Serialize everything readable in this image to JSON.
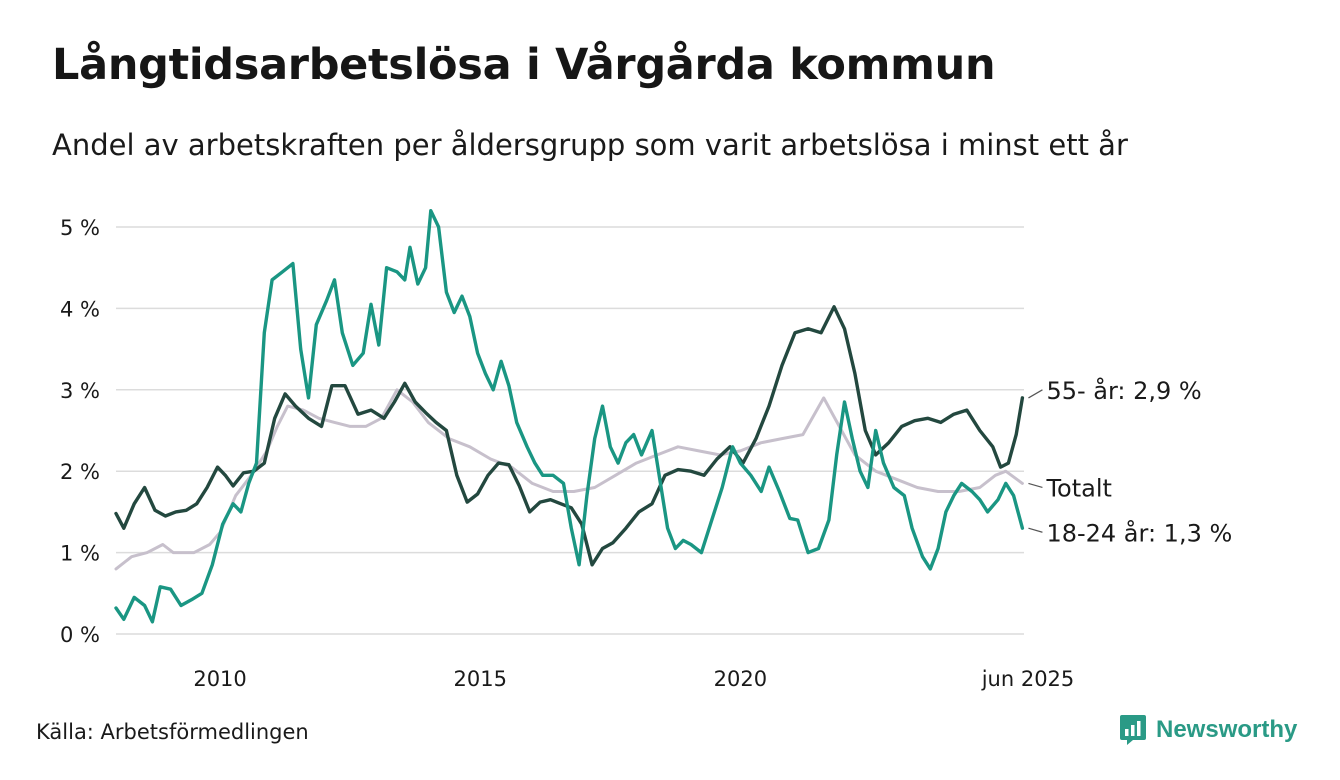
{
  "title": "Långtidsarbetslösa i Vårgårda kommun",
  "subtitle": "Andel av arbetskraften per åldersgrupp som varit arbetslösa i minst ett år",
  "source": "Källa: Arbetsförmedlingen",
  "brand": {
    "name": "Newsworthy",
    "icon": "newsworthy-logo-icon",
    "color": "#2a9a86"
  },
  "colors": {
    "total": "#c7c0cc",
    "age55": "#23483f",
    "age18_24": "#1a9683",
    "grid": "#dcdcdc"
  },
  "chart_data": {
    "type": "line",
    "x_unit": "year",
    "xlim": [
      2008.0,
      2025.45
    ],
    "ylim": [
      0,
      5.2
    ],
    "y_ticks": [
      0,
      1,
      2,
      3,
      4,
      5
    ],
    "y_tick_labels": [
      "0 %",
      "1 %",
      "2 %",
      "3 %",
      "4 %",
      "5 %"
    ],
    "x_ticks": [
      2010,
      2015,
      2020,
      2025.42
    ],
    "x_tick_labels": [
      "2010",
      "2015",
      "2020",
      "jun 2025"
    ],
    "grid": "horizontal",
    "series": [
      {
        "key": "total",
        "name": "Totalt",
        "end_label": "Totalt",
        "color": "#c7c0cc",
        "points": [
          [
            2008.0,
            0.8
          ],
          [
            2008.3,
            0.95
          ],
          [
            2008.6,
            1.0
          ],
          [
            2008.9,
            1.1
          ],
          [
            2009.1,
            1.0
          ],
          [
            2009.5,
            1.0
          ],
          [
            2009.8,
            1.1
          ],
          [
            2010.0,
            1.25
          ],
          [
            2010.3,
            1.7
          ],
          [
            2010.6,
            1.95
          ],
          [
            2010.9,
            2.25
          ],
          [
            2011.1,
            2.55
          ],
          [
            2011.3,
            2.8
          ],
          [
            2011.6,
            2.75
          ],
          [
            2011.9,
            2.65
          ],
          [
            2012.2,
            2.6
          ],
          [
            2012.5,
            2.55
          ],
          [
            2012.8,
            2.55
          ],
          [
            2013.1,
            2.65
          ],
          [
            2013.4,
            3.0
          ],
          [
            2013.7,
            2.85
          ],
          [
            2014.0,
            2.6
          ],
          [
            2014.4,
            2.4
          ],
          [
            2014.8,
            2.3
          ],
          [
            2015.2,
            2.15
          ],
          [
            2015.6,
            2.05
          ],
          [
            2016.0,
            1.85
          ],
          [
            2016.4,
            1.75
          ],
          [
            2016.8,
            1.75
          ],
          [
            2017.2,
            1.8
          ],
          [
            2017.6,
            1.95
          ],
          [
            2018.0,
            2.1
          ],
          [
            2018.4,
            2.2
          ],
          [
            2018.8,
            2.3
          ],
          [
            2019.2,
            2.25
          ],
          [
            2019.6,
            2.2
          ],
          [
            2020.0,
            2.25
          ],
          [
            2020.4,
            2.35
          ],
          [
            2020.8,
            2.4
          ],
          [
            2021.2,
            2.45
          ],
          [
            2021.6,
            2.9
          ],
          [
            2021.9,
            2.55
          ],
          [
            2022.2,
            2.2
          ],
          [
            2022.6,
            2.0
          ],
          [
            2023.0,
            1.9
          ],
          [
            2023.4,
            1.8
          ],
          [
            2023.8,
            1.75
          ],
          [
            2024.2,
            1.75
          ],
          [
            2024.6,
            1.8
          ],
          [
            2024.9,
            1.95
          ],
          [
            2025.1,
            2.0
          ],
          [
            2025.42,
            1.85
          ]
        ]
      },
      {
        "key": "age55",
        "name": "55- år",
        "end_label": "55- år: 2,9 %",
        "color": "#23483f",
        "points": [
          [
            2008.0,
            1.48
          ],
          [
            2008.15,
            1.3
          ],
          [
            2008.35,
            1.6
          ],
          [
            2008.55,
            1.8
          ],
          [
            2008.75,
            1.52
          ],
          [
            2008.95,
            1.45
          ],
          [
            2009.15,
            1.5
          ],
          [
            2009.35,
            1.52
          ],
          [
            2009.55,
            1.6
          ],
          [
            2009.75,
            1.8
          ],
          [
            2009.95,
            2.05
          ],
          [
            2010.1,
            1.95
          ],
          [
            2010.25,
            1.82
          ],
          [
            2010.45,
            1.98
          ],
          [
            2010.65,
            2.0
          ],
          [
            2010.85,
            2.1
          ],
          [
            2011.05,
            2.65
          ],
          [
            2011.25,
            2.95
          ],
          [
            2011.45,
            2.8
          ],
          [
            2011.7,
            2.65
          ],
          [
            2011.95,
            2.55
          ],
          [
            2012.15,
            3.05
          ],
          [
            2012.4,
            3.05
          ],
          [
            2012.65,
            2.7
          ],
          [
            2012.9,
            2.75
          ],
          [
            2013.15,
            2.65
          ],
          [
            2013.35,
            2.85
          ],
          [
            2013.55,
            3.08
          ],
          [
            2013.75,
            2.85
          ],
          [
            2013.95,
            2.72
          ],
          [
            2014.15,
            2.6
          ],
          [
            2014.35,
            2.5
          ],
          [
            2014.55,
            1.95
          ],
          [
            2014.75,
            1.62
          ],
          [
            2014.95,
            1.72
          ],
          [
            2015.15,
            1.95
          ],
          [
            2015.35,
            2.1
          ],
          [
            2015.55,
            2.08
          ],
          [
            2015.75,
            1.82
          ],
          [
            2015.95,
            1.5
          ],
          [
            2016.15,
            1.62
          ],
          [
            2016.35,
            1.65
          ],
          [
            2016.55,
            1.6
          ],
          [
            2016.75,
            1.55
          ],
          [
            2016.95,
            1.35
          ],
          [
            2017.15,
            0.85
          ],
          [
            2017.35,
            1.05
          ],
          [
            2017.55,
            1.12
          ],
          [
            2017.8,
            1.3
          ],
          [
            2018.05,
            1.5
          ],
          [
            2018.3,
            1.6
          ],
          [
            2018.55,
            1.95
          ],
          [
            2018.8,
            2.02
          ],
          [
            2019.05,
            2.0
          ],
          [
            2019.3,
            1.95
          ],
          [
            2019.55,
            2.15
          ],
          [
            2019.8,
            2.3
          ],
          [
            2020.05,
            2.1
          ],
          [
            2020.3,
            2.4
          ],
          [
            2020.55,
            2.8
          ],
          [
            2020.8,
            3.3
          ],
          [
            2021.05,
            3.7
          ],
          [
            2021.3,
            3.75
          ],
          [
            2021.55,
            3.7
          ],
          [
            2021.8,
            4.02
          ],
          [
            2022.0,
            3.75
          ],
          [
            2022.2,
            3.2
          ],
          [
            2022.4,
            2.5
          ],
          [
            2022.6,
            2.2
          ],
          [
            2022.85,
            2.35
          ],
          [
            2023.1,
            2.55
          ],
          [
            2023.35,
            2.62
          ],
          [
            2023.6,
            2.65
          ],
          [
            2023.85,
            2.6
          ],
          [
            2024.1,
            2.7
          ],
          [
            2024.35,
            2.75
          ],
          [
            2024.6,
            2.5
          ],
          [
            2024.85,
            2.3
          ],
          [
            2025.0,
            2.05
          ],
          [
            2025.15,
            2.1
          ],
          [
            2025.3,
            2.45
          ],
          [
            2025.42,
            2.9
          ]
        ]
      },
      {
        "key": "age18_24",
        "name": "18-24 år",
        "end_label": "18-24 år: 1,3 %",
        "color": "#1a9683",
        "points": [
          [
            2008.0,
            0.32
          ],
          [
            2008.15,
            0.18
          ],
          [
            2008.35,
            0.45
          ],
          [
            2008.55,
            0.35
          ],
          [
            2008.7,
            0.15
          ],
          [
            2008.85,
            0.58
          ],
          [
            2009.05,
            0.55
          ],
          [
            2009.25,
            0.35
          ],
          [
            2009.45,
            0.42
          ],
          [
            2009.65,
            0.5
          ],
          [
            2009.85,
            0.85
          ],
          [
            2010.05,
            1.35
          ],
          [
            2010.25,
            1.6
          ],
          [
            2010.4,
            1.5
          ],
          [
            2010.55,
            1.85
          ],
          [
            2010.7,
            2.1
          ],
          [
            2010.85,
            3.7
          ],
          [
            2011.0,
            4.35
          ],
          [
            2011.2,
            4.45
          ],
          [
            2011.4,
            4.55
          ],
          [
            2011.55,
            3.5
          ],
          [
            2011.7,
            2.9
          ],
          [
            2011.85,
            3.8
          ],
          [
            2012.05,
            4.1
          ],
          [
            2012.2,
            4.35
          ],
          [
            2012.35,
            3.7
          ],
          [
            2012.55,
            3.3
          ],
          [
            2012.75,
            3.45
          ],
          [
            2012.9,
            4.05
          ],
          [
            2013.05,
            3.55
          ],
          [
            2013.2,
            4.5
          ],
          [
            2013.4,
            4.45
          ],
          [
            2013.55,
            4.35
          ],
          [
            2013.65,
            4.75
          ],
          [
            2013.8,
            4.3
          ],
          [
            2013.95,
            4.5
          ],
          [
            2014.05,
            5.2
          ],
          [
            2014.2,
            5.0
          ],
          [
            2014.35,
            4.2
          ],
          [
            2014.5,
            3.95
          ],
          [
            2014.65,
            4.15
          ],
          [
            2014.8,
            3.9
          ],
          [
            2014.95,
            3.45
          ],
          [
            2015.1,
            3.2
          ],
          [
            2015.25,
            3.0
          ],
          [
            2015.4,
            3.35
          ],
          [
            2015.55,
            3.05
          ],
          [
            2015.7,
            2.6
          ],
          [
            2015.9,
            2.3
          ],
          [
            2016.05,
            2.1
          ],
          [
            2016.2,
            1.95
          ],
          [
            2016.4,
            1.95
          ],
          [
            2016.6,
            1.85
          ],
          [
            2016.75,
            1.3
          ],
          [
            2016.9,
            0.85
          ],
          [
            2017.05,
            1.7
          ],
          [
            2017.2,
            2.4
          ],
          [
            2017.35,
            2.8
          ],
          [
            2017.5,
            2.3
          ],
          [
            2017.65,
            2.1
          ],
          [
            2017.8,
            2.35
          ],
          [
            2017.95,
            2.45
          ],
          [
            2018.1,
            2.2
          ],
          [
            2018.3,
            2.5
          ],
          [
            2018.45,
            1.9
          ],
          [
            2018.6,
            1.3
          ],
          [
            2018.75,
            1.05
          ],
          [
            2018.9,
            1.15
          ],
          [
            2019.05,
            1.1
          ],
          [
            2019.25,
            1.0
          ],
          [
            2019.45,
            1.4
          ],
          [
            2019.65,
            1.8
          ],
          [
            2019.85,
            2.3
          ],
          [
            2020.0,
            2.1
          ],
          [
            2020.2,
            1.95
          ],
          [
            2020.4,
            1.75
          ],
          [
            2020.55,
            2.05
          ],
          [
            2020.75,
            1.75
          ],
          [
            2020.95,
            1.42
          ],
          [
            2021.1,
            1.4
          ],
          [
            2021.3,
            1.0
          ],
          [
            2021.5,
            1.05
          ],
          [
            2021.7,
            1.4
          ],
          [
            2021.85,
            2.2
          ],
          [
            2022.0,
            2.85
          ],
          [
            2022.15,
            2.4
          ],
          [
            2022.3,
            2.0
          ],
          [
            2022.45,
            1.8
          ],
          [
            2022.6,
            2.5
          ],
          [
            2022.75,
            2.1
          ],
          [
            2022.95,
            1.8
          ],
          [
            2023.15,
            1.7
          ],
          [
            2023.3,
            1.3
          ],
          [
            2023.5,
            0.95
          ],
          [
            2023.65,
            0.8
          ],
          [
            2023.8,
            1.05
          ],
          [
            2023.95,
            1.5
          ],
          [
            2024.1,
            1.7
          ],
          [
            2024.25,
            1.85
          ],
          [
            2024.45,
            1.75
          ],
          [
            2024.6,
            1.65
          ],
          [
            2024.75,
            1.5
          ],
          [
            2024.95,
            1.65
          ],
          [
            2025.1,
            1.85
          ],
          [
            2025.25,
            1.7
          ],
          [
            2025.42,
            1.3
          ]
        ]
      }
    ]
  }
}
